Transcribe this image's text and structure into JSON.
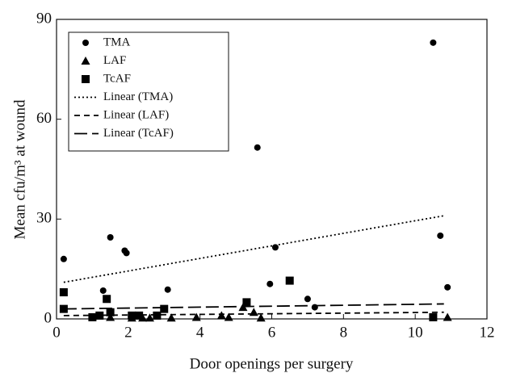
{
  "chart_data": {
    "type": "scatter",
    "x_label": "Door openings per surgery",
    "y_label": "Mean cfu/m³ at wound",
    "xlim": [
      0,
      12
    ],
    "xticks": [
      0,
      2,
      4,
      6,
      8,
      10,
      12
    ],
    "ylim": [
      0,
      90
    ],
    "yticks": [
      0,
      30,
      60,
      90
    ],
    "legend": "upper left",
    "series": [
      {
        "name": "TMA",
        "color": "#000000",
        "kind": "points",
        "marker": "circle",
        "x": [
          0.2,
          1.5,
          1.3,
          1.9,
          1.95,
          3.1,
          5.6,
          5.95,
          6.1,
          7.0,
          7.2,
          10.5,
          10.7,
          10.9
        ],
        "values": [
          18,
          24.5,
          8.5,
          20.5,
          19.8,
          8.8,
          51.5,
          10.5,
          21.5,
          6,
          3.5,
          83,
          25,
          9.5
        ]
      },
      {
        "name": "LAF",
        "color": "#000000",
        "kind": "points",
        "marker": "triangle",
        "x": [
          1.5,
          2.1,
          2.4,
          2.6,
          3.2,
          3.9,
          4.6,
          4.8,
          5.2,
          5.5,
          5.7,
          10.9
        ],
        "values": [
          0.5,
          0.3,
          0.3,
          0.3,
          0.3,
          0.5,
          1,
          0.5,
          3.5,
          2,
          0.3,
          0.5
        ]
      },
      {
        "name": "TcAF",
        "color": "#000000",
        "kind": "points",
        "marker": "square",
        "x": [
          0.2,
          0.2,
          1.0,
          1.2,
          1.4,
          1.5,
          2.1,
          2.3,
          2.8,
          3.0,
          5.3,
          6.5,
          10.5
        ],
        "values": [
          8,
          3,
          0.5,
          1,
          6,
          2,
          1,
          1,
          1,
          3,
          5,
          11.5,
          0.5
        ]
      },
      {
        "name": "Linear (TMA)",
        "color": "#000000",
        "kind": "line",
        "style": "dotted",
        "x": [
          0.2,
          10.8
        ],
        "values": [
          11,
          31
        ]
      },
      {
        "name": "Linear (LAF)",
        "color": "#000000",
        "kind": "line",
        "style": "dashed",
        "x": [
          0.2,
          10.8
        ],
        "values": [
          1,
          2
        ]
      },
      {
        "name": "Linear (TcAF)",
        "color": "#000000",
        "kind": "line",
        "style": "longdash",
        "x": [
          0.2,
          10.8
        ],
        "values": [
          3,
          4.5
        ]
      }
    ]
  }
}
